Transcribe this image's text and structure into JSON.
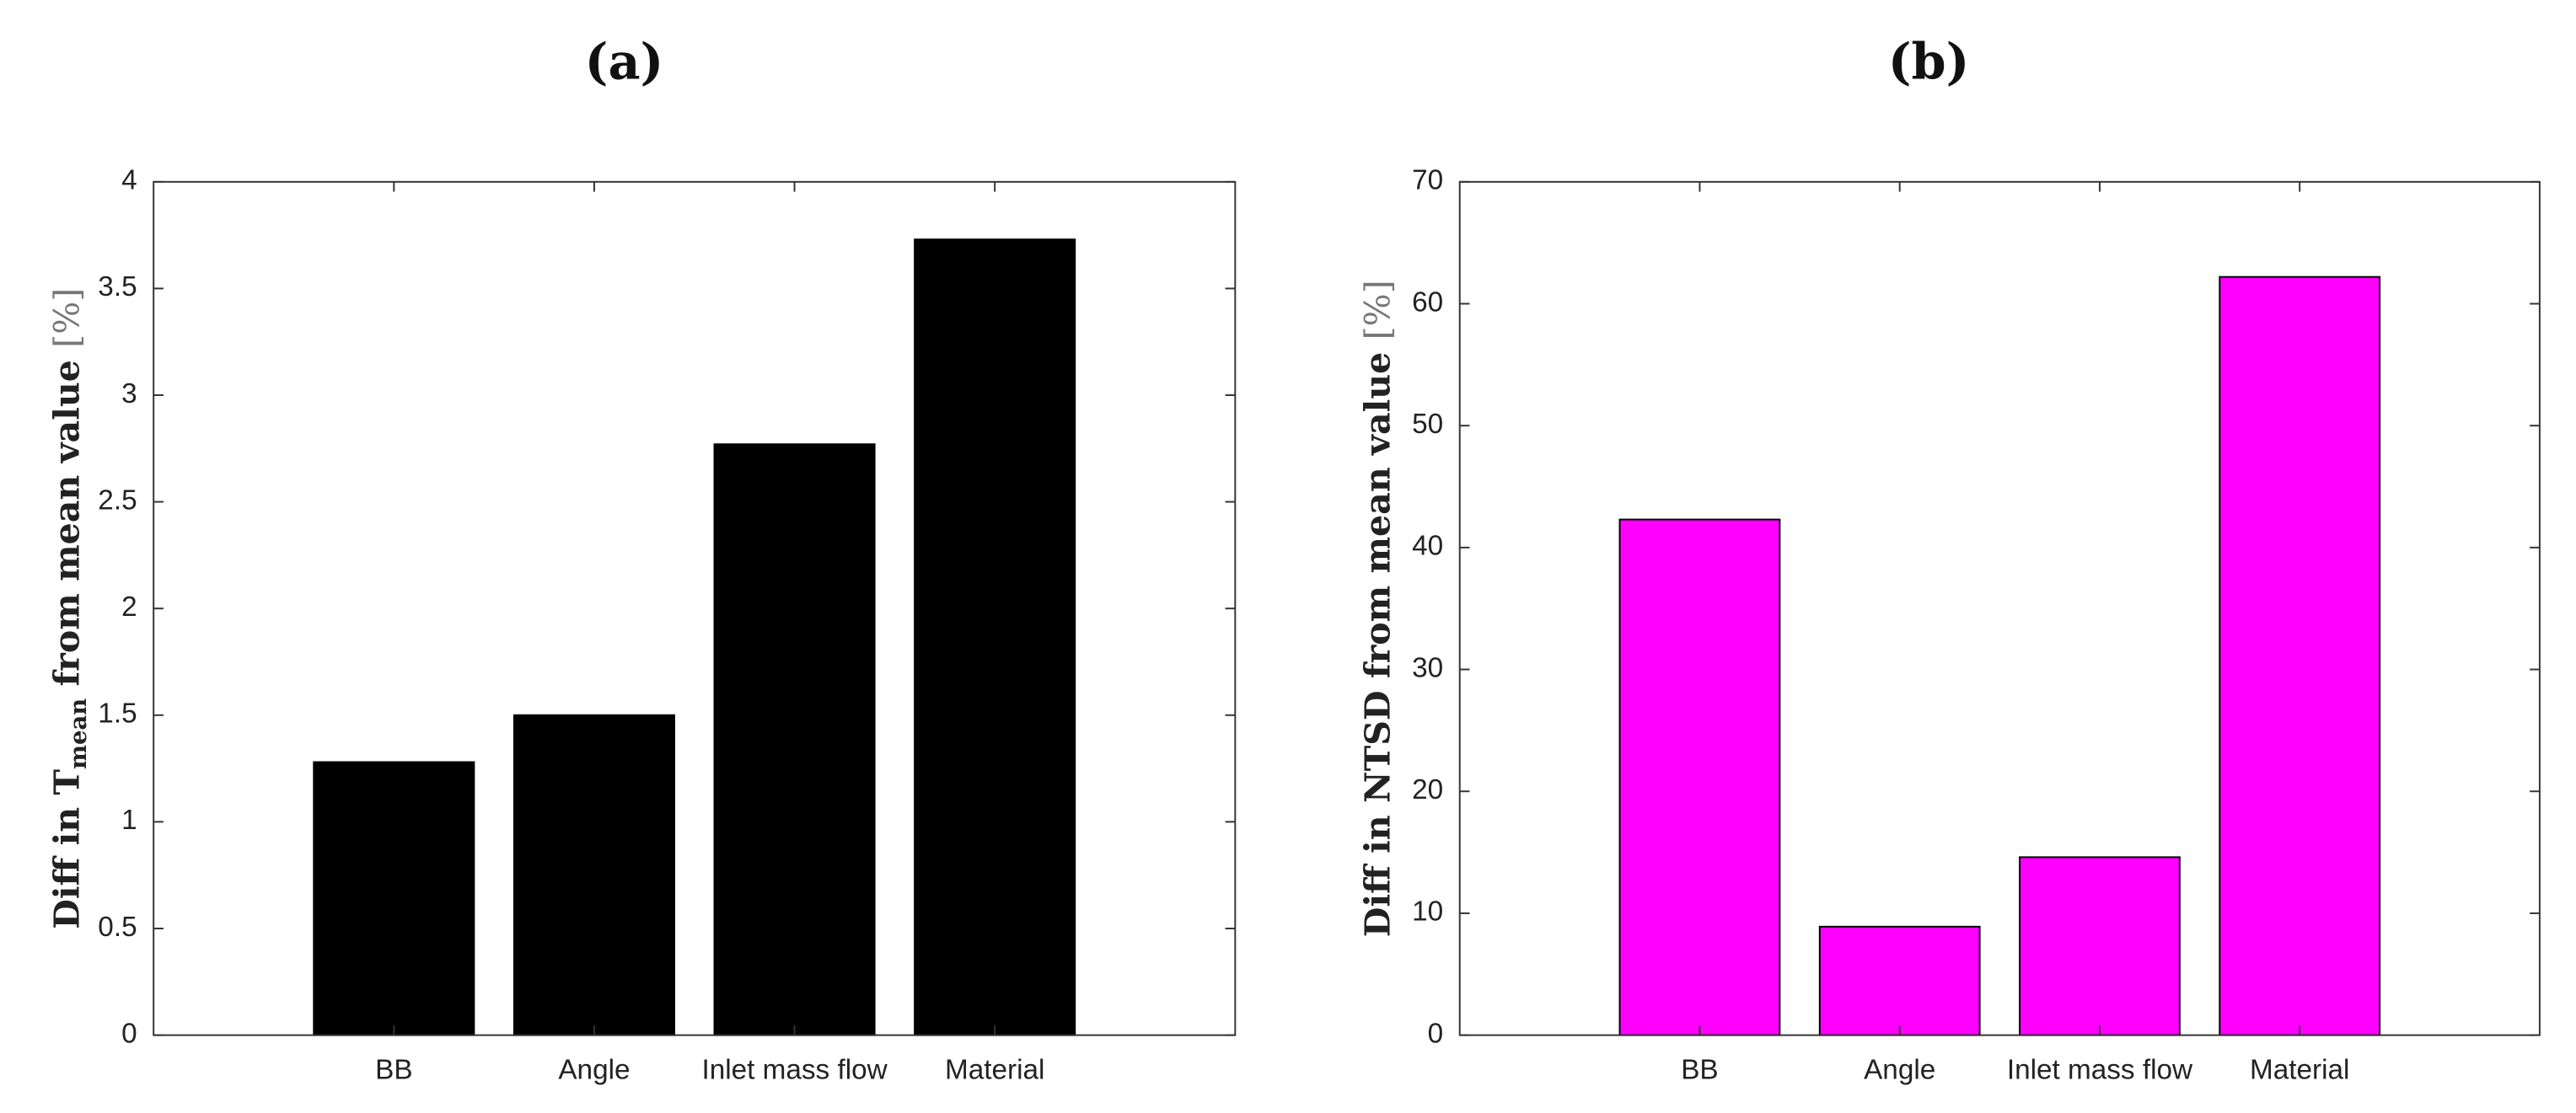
{
  "chart_data": [
    {
      "type": "bar",
      "title": "(a)",
      "ylabel": [
        "Diff in T",
        "mean",
        " from mean value ",
        "[%]"
      ],
      "categories": [
        "BB",
        "Angle",
        "Inlet mass flow",
        "Material"
      ],
      "values": [
        1.28,
        1.5,
        2.77,
        3.73
      ],
      "color": "#000000",
      "edgecolor": "#000000",
      "ylim": [
        0,
        4
      ],
      "yticks": [
        0,
        0.5,
        1,
        1.5,
        2,
        2.5,
        3,
        3.5,
        4
      ]
    },
    {
      "type": "bar",
      "title": "(b)",
      "ylabel": [
        "Diff in NTSD from mean value ",
        "[%]"
      ],
      "categories": [
        "BB",
        "Angle",
        "Inlet mass flow",
        "Material"
      ],
      "values": [
        42.3,
        8.9,
        14.6,
        62.2
      ],
      "color": "#ff00ff",
      "edgecolor": "#000000",
      "ylim": [
        0,
        70
      ],
      "yticks": [
        0,
        10,
        20,
        30,
        40,
        50,
        60,
        70
      ]
    }
  ]
}
